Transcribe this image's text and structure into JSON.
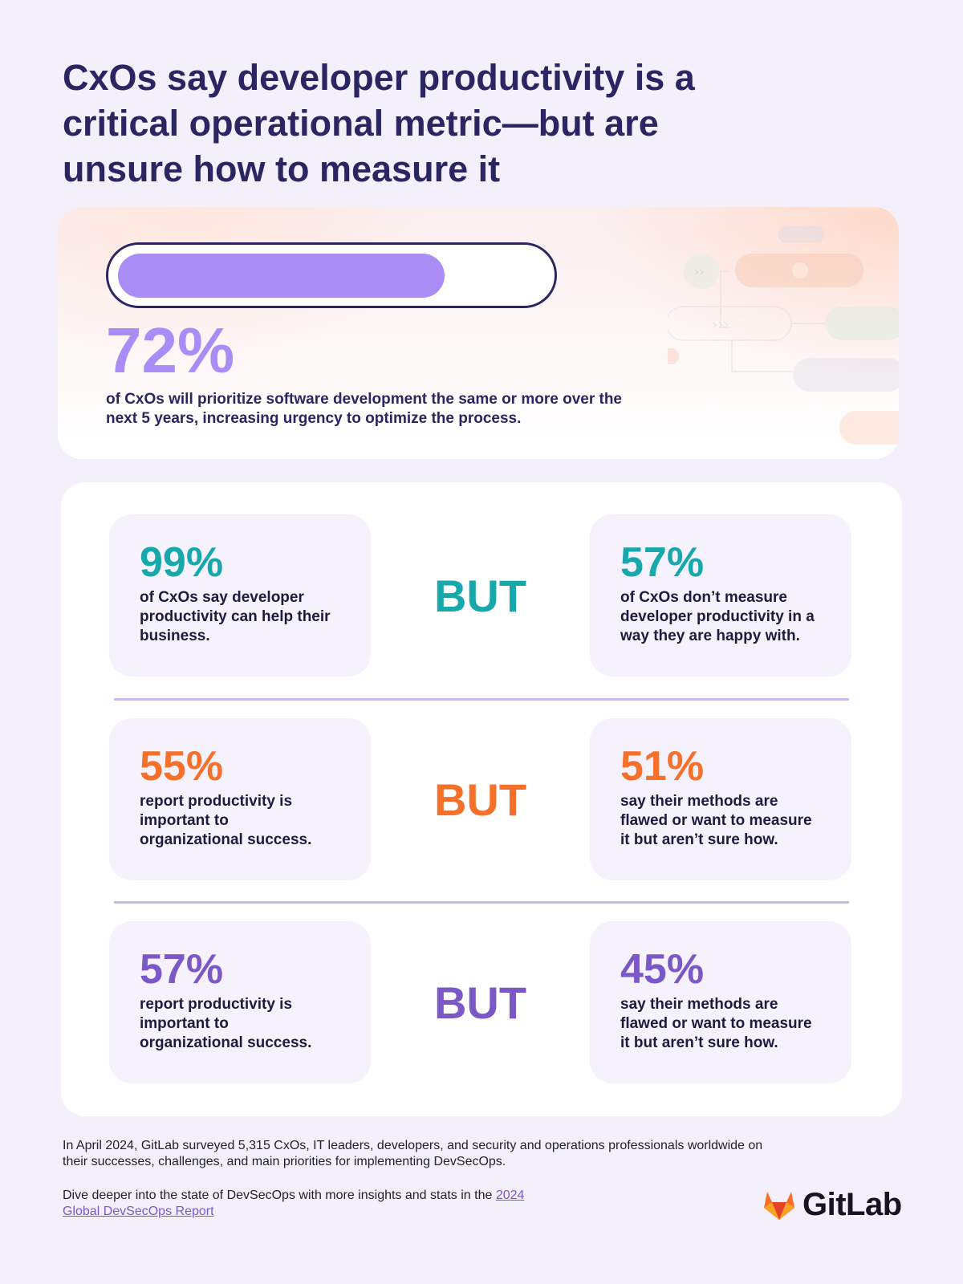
{
  "headline": "CxOs say developer productivity is a critical operational metric—but are unsure how to measure it",
  "hero": {
    "progress_fraction": 0.72,
    "stat": "72%",
    "text": "of CxOs will prioritize software development the same or more over the next 5 years, increasing urgency to optimize the process."
  },
  "comparisons": [
    {
      "left": {
        "pct": "99%",
        "desc": "of CxOs say developer productivity can help their business."
      },
      "connector": "BUT",
      "right": {
        "pct": "57%",
        "desc": "of CxOs don’t measure developer productivity in a way they are happy with."
      },
      "color": "#17a8ab"
    },
    {
      "left": {
        "pct": "55%",
        "desc": "report productivity is important to organizational success."
      },
      "connector": "BUT",
      "right": {
        "pct": "51%",
        "desc": "say their methods are flawed or want to measure it but aren’t sure how."
      },
      "color": "#f6702a"
    },
    {
      "left": {
        "pct": "57%",
        "desc": "report productivity is important to organizational success."
      },
      "connector": "BUT",
      "right": {
        "pct": "45%",
        "desc": "say their methods are flawed or want to measure it but aren’t sure how."
      },
      "color": "#7a58c6"
    }
  ],
  "footer": {
    "survey_note": "In April 2024, GitLab surveyed 5,315 CxOs, IT leaders, developers, and security and operations professionals worldwide on their successes, challenges, and main priorities for implementing DevSecOps.",
    "deeper_prefix": "Dive deeper into the state of DevSecOps with more insights and stats in the ",
    "report_link": "2024 Global DevSecOps Report"
  },
  "brand": {
    "logo_text": "GitLab",
    "accent_purple": "#a98cf6",
    "navy": "#2b2561"
  }
}
